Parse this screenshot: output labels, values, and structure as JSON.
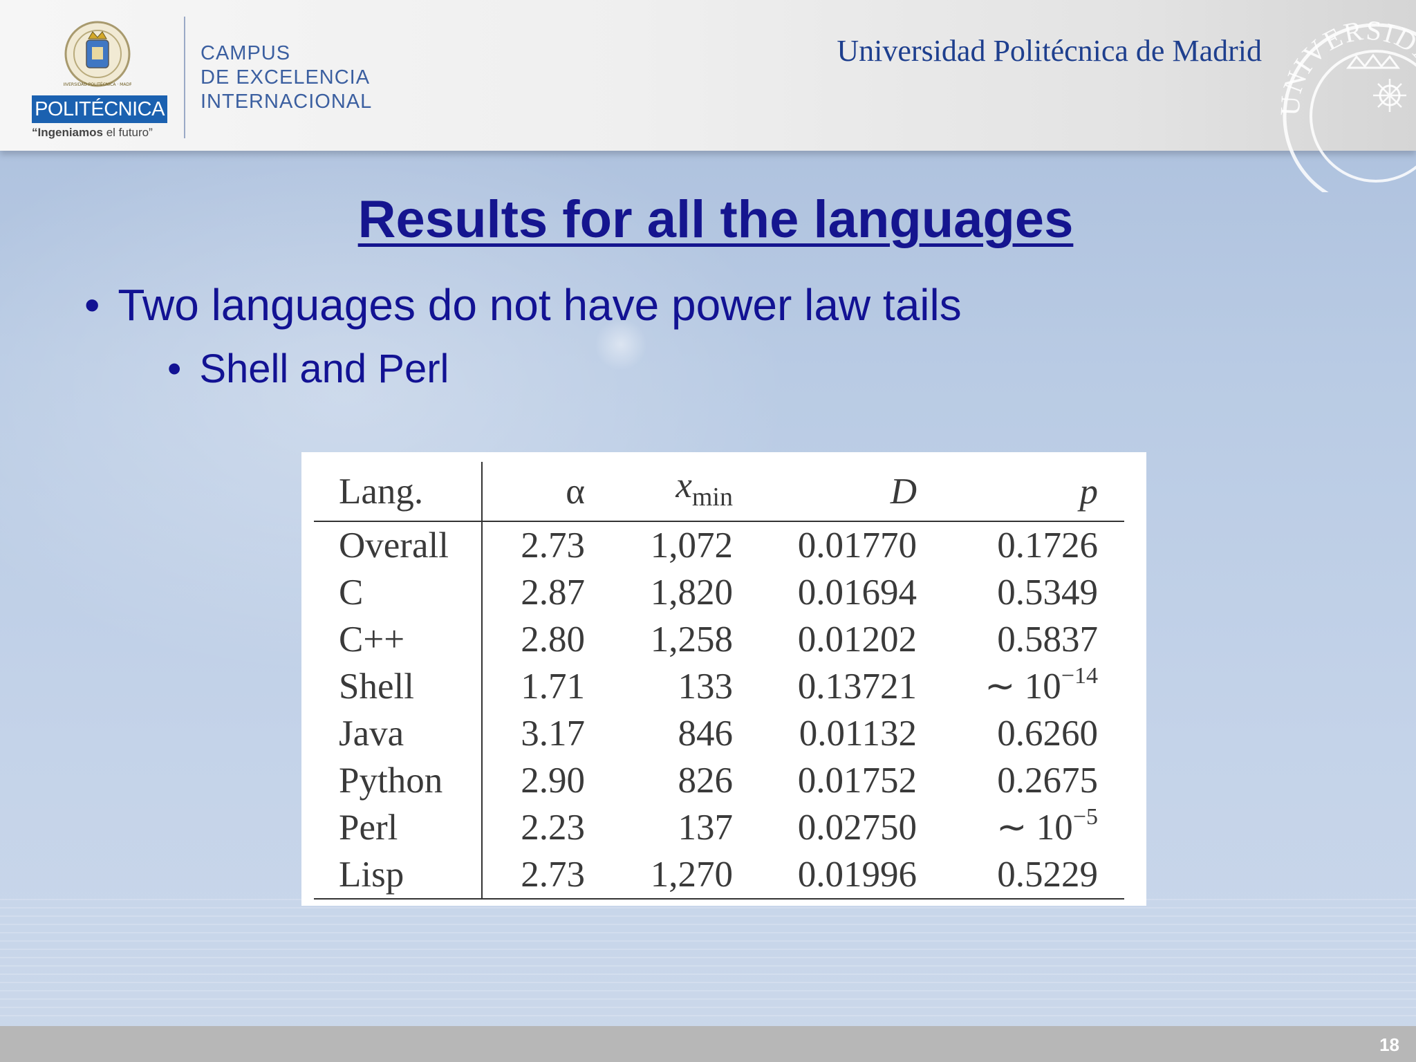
{
  "header": {
    "logo_text": "POLITÉCNICA",
    "motto_bold": "“Ingeniamos",
    "motto_rest": " el futuro”",
    "campus_lines": [
      "CAMPUS",
      "DE EXCELENCIA",
      "INTERNACIONAL"
    ],
    "university_name": "Universidad Politécnica de Madrid",
    "seal_text": "UNIVERSIDAD*P",
    "crest_text": "UNIVERSIDAD POLITÉCNICA · MADRID"
  },
  "slide": {
    "title": "Results for all the languages",
    "bullets": [
      {
        "text": "Two languages do not have power law tails"
      },
      {
        "text": "Shell and Perl"
      }
    ],
    "page_number": "18"
  },
  "table": {
    "headers": {
      "lang": "Lang.",
      "alpha": "α",
      "xmin_base": "x",
      "xmin_sub": "min",
      "d": "D",
      "p": "p"
    },
    "rows": [
      {
        "lang": "Overall",
        "alpha": "2.73",
        "xmin": "1,072",
        "d": "0.01770",
        "p": "0.1726"
      },
      {
        "lang": "C",
        "alpha": "2.87",
        "xmin": "1,820",
        "d": "0.01694",
        "p": "0.5349"
      },
      {
        "lang": "C++",
        "alpha": "2.80",
        "xmin": "1,258",
        "d": "0.01202",
        "p": "0.5837"
      },
      {
        "lang": "Shell",
        "alpha": "1.71",
        "xmin": "133",
        "d": "0.13721",
        "p_base": "∼ 10",
        "p_exp": "−14"
      },
      {
        "lang": "Java",
        "alpha": "3.17",
        "xmin": "846",
        "d": "0.01132",
        "p": "0.6260"
      },
      {
        "lang": "Python",
        "alpha": "2.90",
        "xmin": "826",
        "d": "0.01752",
        "p": "0.2675"
      },
      {
        "lang": "Perl",
        "alpha": "2.23",
        "xmin": "137",
        "d": "0.02750",
        "p_base": "∼ 10",
        "p_exp": "−5"
      },
      {
        "lang": "Lisp",
        "alpha": "2.73",
        "xmin": "1,270",
        "d": "0.01996",
        "p": "0.5229"
      }
    ]
  },
  "colors": {
    "title": "#15158f",
    "text": "#121293",
    "logo_blue": "#1b61b0",
    "university": "#1e3f8e"
  }
}
